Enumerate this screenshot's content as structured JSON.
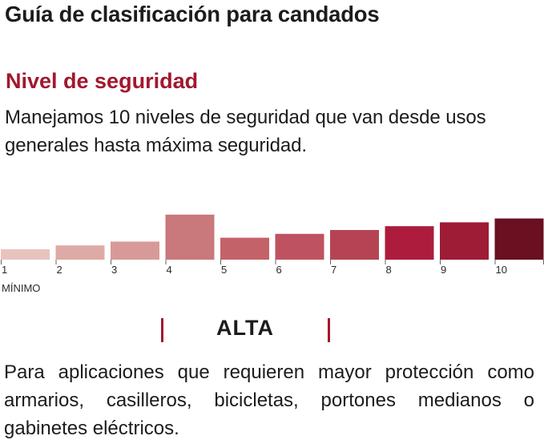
{
  "title": "Guía de clasificación para candados",
  "section": {
    "heading": "Nivel de seguridad",
    "intro": "Manejamos 10 niveles de seguridad que van desde usos generales hasta máxima seguridad."
  },
  "chart_data": {
    "type": "bar",
    "categories": [
      "1",
      "2",
      "3",
      "4",
      "5",
      "6",
      "7",
      "8",
      "9",
      "10"
    ],
    "values": [
      1,
      2,
      3,
      10,
      4,
      5,
      6,
      7,
      8,
      9
    ],
    "highlighted_level": "4",
    "min_label": "MÍNIMO",
    "colors": [
      "#e8c3bd",
      "#deaaa6",
      "#d89a99",
      "#c9787b",
      "#c4626a",
      "#bf5260",
      "#b64353",
      "#ad1c3d",
      "#9e1c36",
      "#6a1020"
    ]
  },
  "selected_level": {
    "label": "ALTA",
    "description": "Para aplicaciones que requieren mayor protección como armarios, casilleros, bicicletas, portones medianos o gabinetes eléctricos."
  },
  "colors": {
    "accent": "#a3172e",
    "text": "#1c1c1c"
  }
}
